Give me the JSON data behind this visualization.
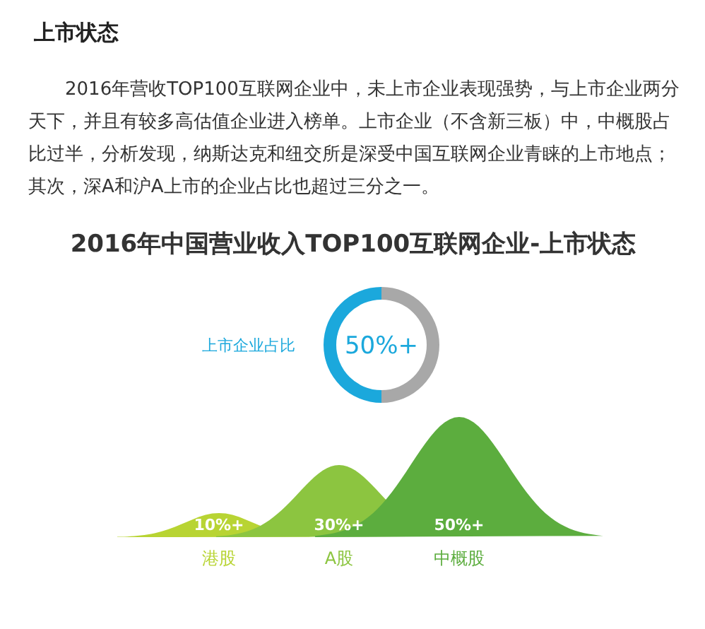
{
  "chart_data": [
    {
      "type": "other",
      "title": "上市状态",
      "subtitle": "2016年营收TOP100互联网企业中，未上市企业表现强势，与上市企业两分天下，并且有较多高估值企业进入榜单。上市企业（不含新三板）中，中概股占比过半，分析发现，纳斯达克和纽交所是深受中国互联网企业青睐的上市地点；其次，深A和沪A上市的企业占比也超过三分之一。"
    },
    {
      "type": "donut",
      "title": "2016年中国营业收入TOP100互联网企业-上市状态",
      "categories": [
        "上市企业占比",
        null
      ],
      "values": [
        50,
        50
      ],
      "colors": [
        "#1ba8dc",
        "#a8a8a8"
      ],
      "value_labels": [
        "50%+",
        null
      ]
    },
    {
      "type": "other",
      "categories": [
        "港股",
        "A股",
        "中概股"
      ],
      "values": [
        10,
        30,
        50
      ],
      "colors": [
        "#b8d433",
        "#8cc540",
        "#5cad3e"
      ],
      "value_labels": [
        "10%+",
        "30%+",
        "50%+"
      ]
    }
  ]
}
